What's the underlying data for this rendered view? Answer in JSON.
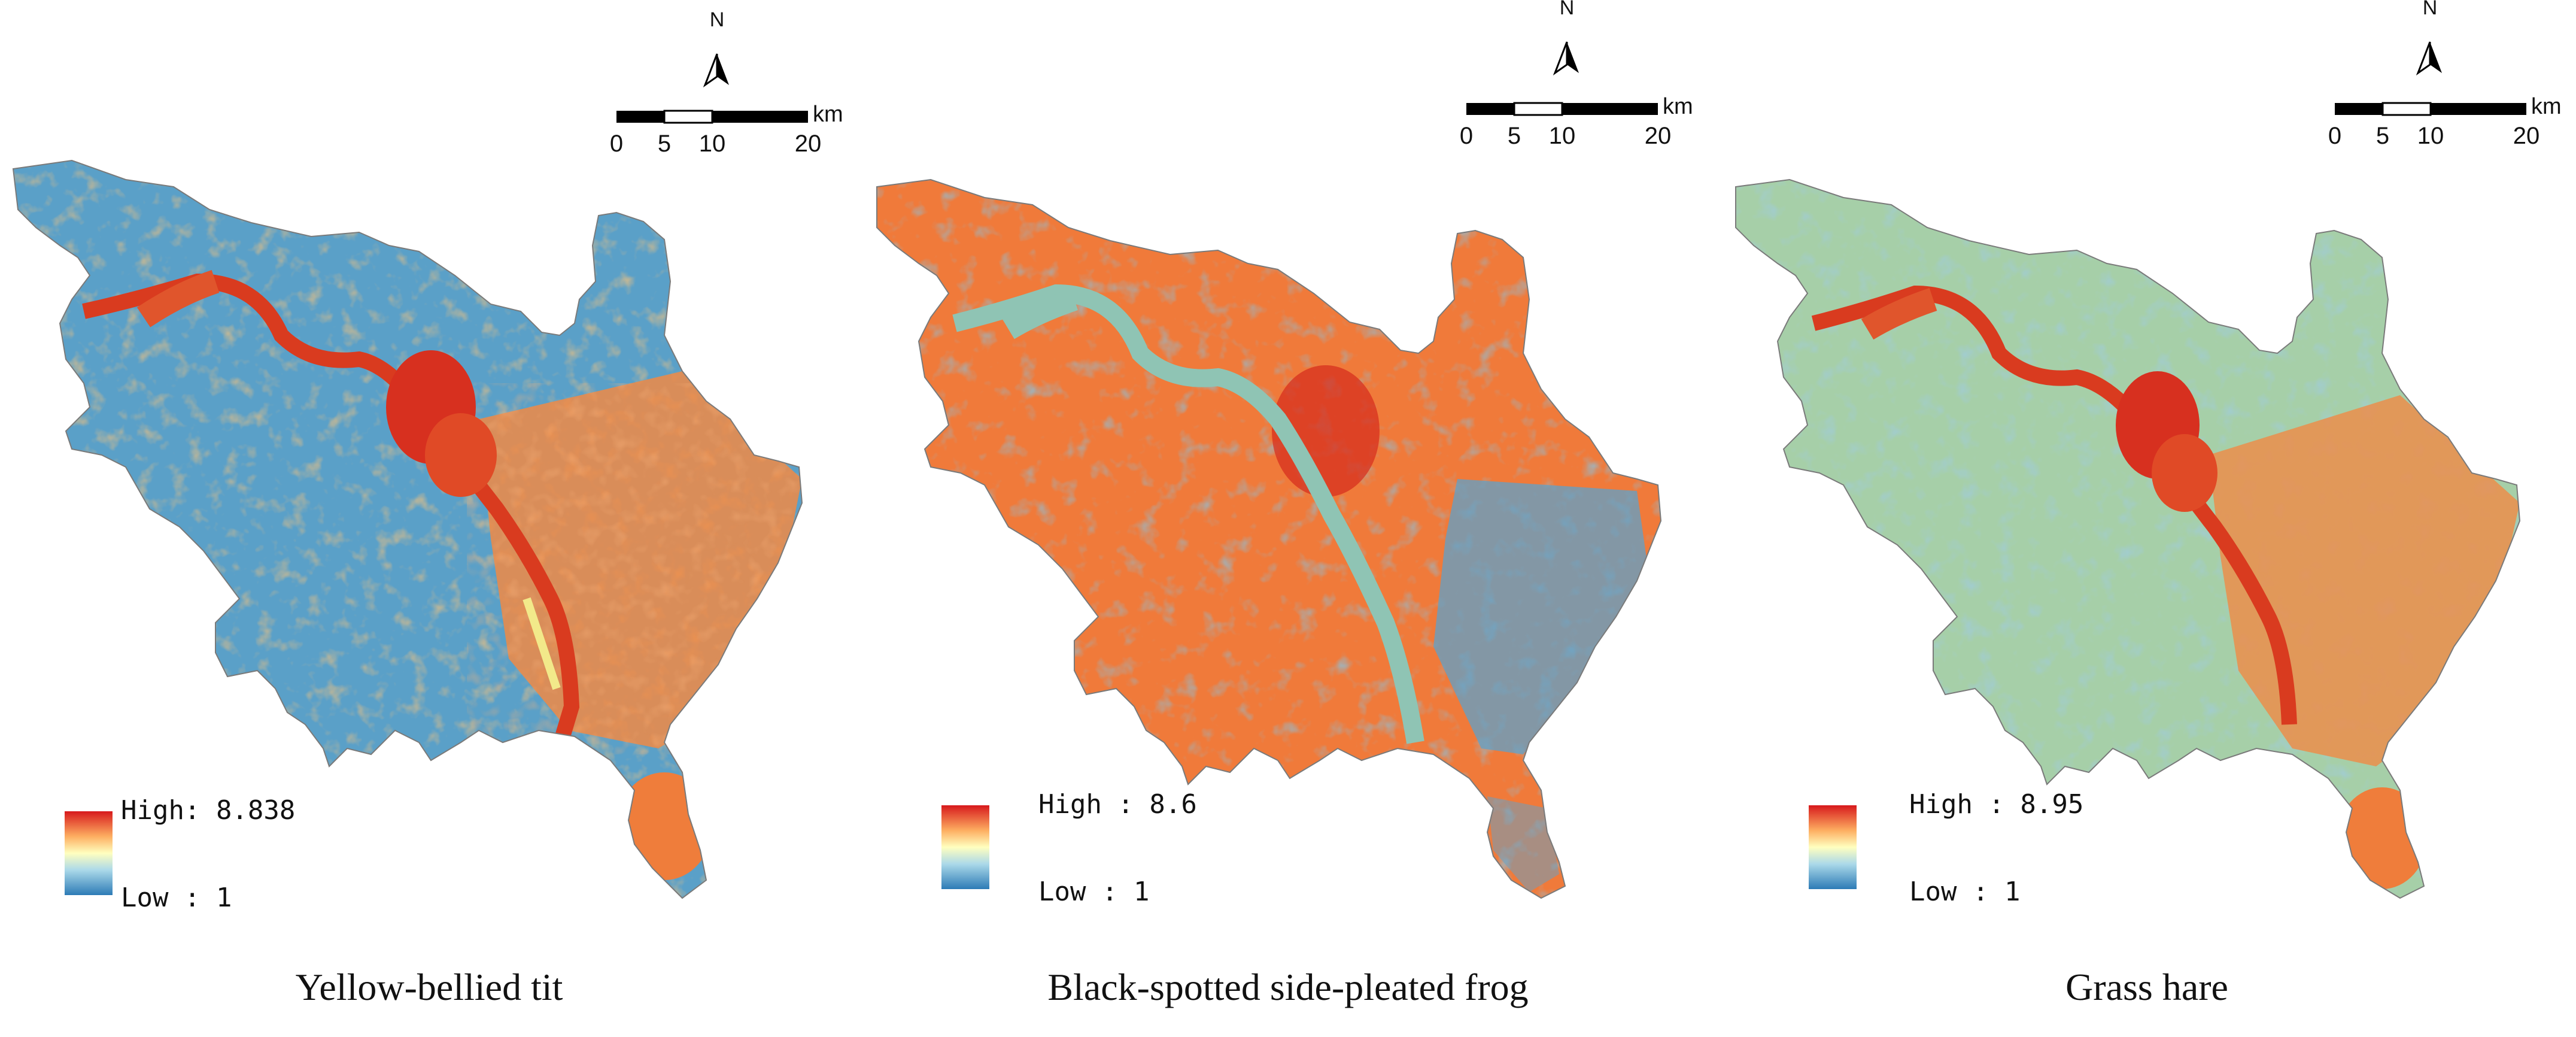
{
  "panels": [
    {
      "caption": "Yellow-bellied tit",
      "legend": {
        "high": "High: 8.838",
        "low": "Low : 1"
      },
      "scale_bar": {
        "unit": "km",
        "ticks": [
          "0",
          "5",
          "10",
          "20"
        ]
      },
      "north": "N",
      "dominant_tone": "blue",
      "high_zones": [
        "river corridor",
        "central town",
        "southeast"
      ]
    },
    {
      "caption": "Black-spotted side-pleated frog",
      "legend": {
        "high": "High : 8.6",
        "low": "Low : 1"
      },
      "scale_bar": {
        "unit": "km",
        "ticks": [
          "0",
          "5",
          "10",
          "20"
        ]
      },
      "north": "N",
      "dominant_tone": "orange",
      "high_zones": [
        "west",
        "central",
        "south"
      ]
    },
    {
      "caption": "Grass hare",
      "legend": {
        "high": "High : 8.95",
        "low": "Low : 1"
      },
      "scale_bar": {
        "unit": "km",
        "ticks": [
          "0",
          "5",
          "10",
          "20"
        ]
      },
      "north": "N",
      "dominant_tone": "mixed",
      "high_zones": [
        "river corridor",
        "central town",
        "southeast"
      ]
    }
  ],
  "colors": {
    "high": "#d7191c",
    "mid_high": "#fdae61",
    "mid": "#ffffbf",
    "mid_low": "#abd9e9",
    "low": "#2c7bb6",
    "river_water": "#8fc4b4"
  }
}
